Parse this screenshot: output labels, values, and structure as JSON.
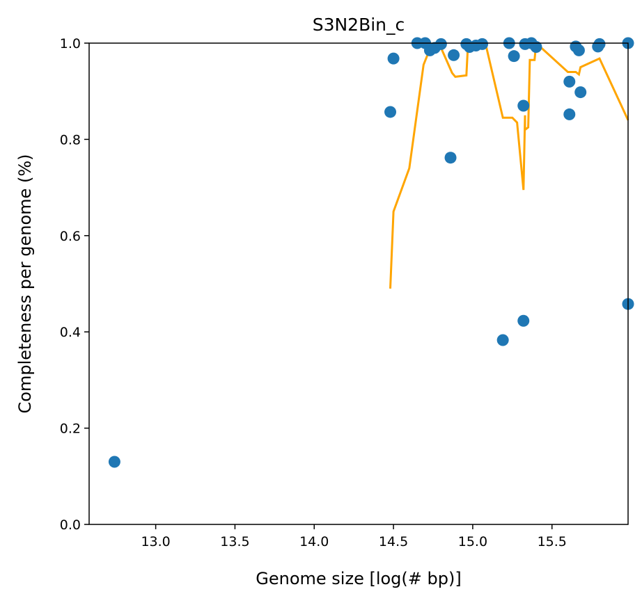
{
  "chart_data": {
    "type": "scatter",
    "title": "S3N2Bin_c",
    "xlabel": "Genome size [log(# bp)]",
    "ylabel": "Completeness per genome (%)",
    "xlim": [
      12.58,
      15.98
    ],
    "ylim": [
      0.0,
      1.0
    ],
    "x_ticks": [
      13.0,
      13.5,
      14.0,
      14.5,
      15.0,
      15.5
    ],
    "y_ticks": [
      0.0,
      0.2,
      0.4,
      0.6,
      0.8,
      1.0
    ],
    "x_tick_labels": [
      "13.0",
      "13.5",
      "14.0",
      "14.5",
      "15.0",
      "15.5"
    ],
    "y_tick_labels": [
      "0.0",
      "0.2",
      "0.4",
      "0.6",
      "0.8",
      "1.0"
    ],
    "grid": false,
    "colors": {
      "scatter": "#1f77b4",
      "line": "#ffa500"
    },
    "series": [
      {
        "type": "scatter",
        "points": [
          [
            12.74,
            0.13
          ],
          [
            14.48,
            0.857
          ],
          [
            14.5,
            0.968
          ],
          [
            14.65,
            1.0
          ],
          [
            14.7,
            1.0
          ],
          [
            14.73,
            0.985
          ],
          [
            14.76,
            0.99
          ],
          [
            14.8,
            0.998
          ],
          [
            14.86,
            0.762
          ],
          [
            14.88,
            0.975
          ],
          [
            14.96,
            0.998
          ],
          [
            14.98,
            0.992
          ],
          [
            15.02,
            0.995
          ],
          [
            15.06,
            0.998
          ],
          [
            15.19,
            0.383
          ],
          [
            15.23,
            1.0
          ],
          [
            15.26,
            0.973
          ],
          [
            15.32,
            0.87
          ],
          [
            15.32,
            0.423
          ],
          [
            15.33,
            0.998
          ],
          [
            15.37,
            1.0
          ],
          [
            15.4,
            0.992
          ],
          [
            15.61,
            0.92
          ],
          [
            15.61,
            0.852
          ],
          [
            15.65,
            0.993
          ],
          [
            15.67,
            0.985
          ],
          [
            15.68,
            0.898
          ],
          [
            15.79,
            0.993
          ],
          [
            15.8,
            0.998
          ],
          [
            15.98,
            0.458
          ],
          [
            15.98,
            1.0
          ]
        ]
      },
      {
        "type": "line",
        "points": [
          [
            14.48,
            0.49
          ],
          [
            14.5,
            0.65
          ],
          [
            14.6,
            0.74
          ],
          [
            14.69,
            0.955
          ],
          [
            14.72,
            0.98
          ],
          [
            14.76,
            0.998
          ],
          [
            14.8,
            0.99
          ],
          [
            14.87,
            0.938
          ],
          [
            14.89,
            0.93
          ],
          [
            14.96,
            0.933
          ],
          [
            14.97,
            0.998
          ],
          [
            15.05,
            1.0
          ],
          [
            15.08,
            1.0
          ],
          [
            15.19,
            0.845
          ],
          [
            15.25,
            0.845
          ],
          [
            15.28,
            0.835
          ],
          [
            15.32,
            0.695
          ],
          [
            15.33,
            0.85
          ],
          [
            15.33,
            0.82
          ],
          [
            15.35,
            0.825
          ],
          [
            15.36,
            0.965
          ],
          [
            15.39,
            0.965
          ],
          [
            15.4,
            1.0
          ],
          [
            15.6,
            0.94
          ],
          [
            15.65,
            0.94
          ],
          [
            15.67,
            0.935
          ],
          [
            15.68,
            0.95
          ],
          [
            15.8,
            0.968
          ],
          [
            15.98,
            0.84
          ]
        ]
      }
    ]
  }
}
